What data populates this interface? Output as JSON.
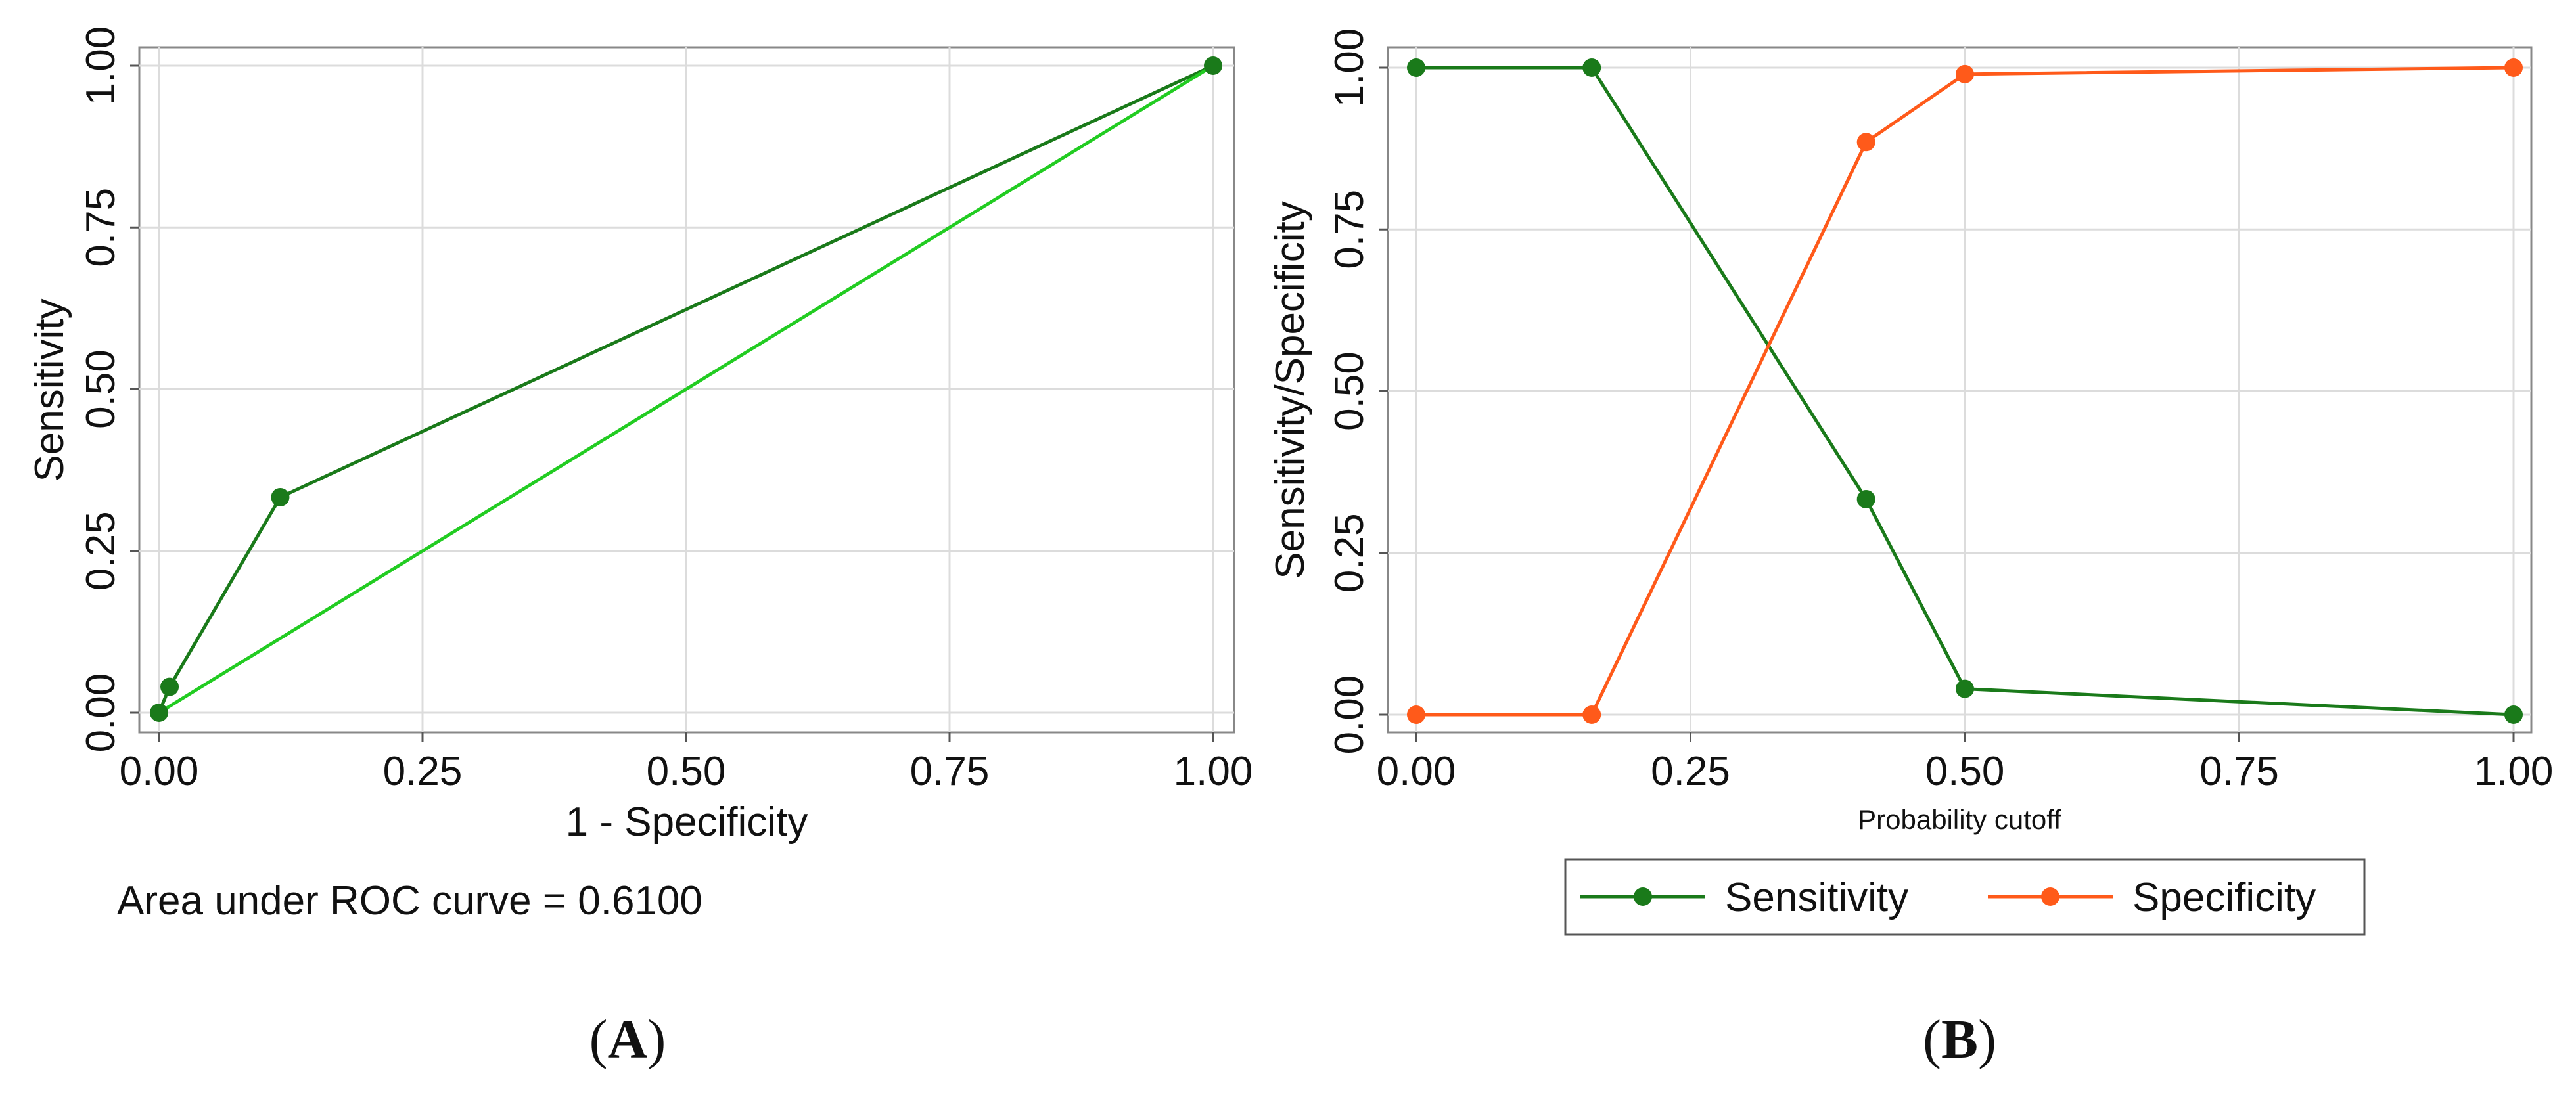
{
  "colors": {
    "roc_line": "#1a7a1a",
    "reference_line": "#22cc22",
    "sensitivity": "#1a7a1a",
    "specificity": "#ff5a1a",
    "grid": "#dcdcdc",
    "axis": "#555555",
    "frame": "#888888"
  },
  "chart_data": [
    {
      "panel": "A",
      "type": "line",
      "xlabel": "1 - Specificity",
      "ylabel": "Sensitivity",
      "xlim": [
        0,
        1
      ],
      "ylim": [
        0,
        1
      ],
      "xticks": [
        "0.00",
        "0.25",
        "0.50",
        "0.75",
        "1.00"
      ],
      "yticks": [
        "0.00",
        "0.25",
        "0.50",
        "0.75",
        "1.00"
      ],
      "grid": true,
      "series": [
        {
          "kind": "roc",
          "markers": true,
          "x": [
            0.0,
            0.01,
            0.115,
            1.0
          ],
          "y": [
            0.0,
            0.04,
            0.333,
            1.0
          ]
        },
        {
          "kind": "reference",
          "markers": false,
          "x": [
            0.0,
            1.0
          ],
          "y": [
            0.0,
            1.0
          ]
        }
      ],
      "annotation": "Area under ROC curve = 0.6100"
    },
    {
      "panel": "B",
      "type": "line",
      "xlabel": "Probability cutoff",
      "ylabel": "Sensitivity/Specificity",
      "xlim": [
        0,
        1
      ],
      "ylim": [
        0,
        1
      ],
      "xticks": [
        "0.00",
        "0.25",
        "0.50",
        "0.75",
        "1.00"
      ],
      "yticks": [
        "0.00",
        "0.25",
        "0.50",
        "0.75",
        "1.00"
      ],
      "grid": true,
      "legend_position": "bottom",
      "series": [
        {
          "name": "Sensitivity",
          "x": [
            0.0,
            0.16,
            0.41,
            0.5,
            1.0
          ],
          "y": [
            1.0,
            1.0,
            0.333,
            0.04,
            0.0
          ]
        },
        {
          "name": "Specificity",
          "x": [
            0.0,
            0.16,
            0.41,
            0.5,
            1.0
          ],
          "y": [
            0.0,
            0.0,
            0.885,
            0.99,
            1.0
          ]
        }
      ]
    }
  ],
  "panel_labels": {
    "A": {
      "open": "(",
      "letter": "A",
      "close": ")"
    },
    "B": {
      "open": "(",
      "letter": "B",
      "close": ")"
    }
  }
}
